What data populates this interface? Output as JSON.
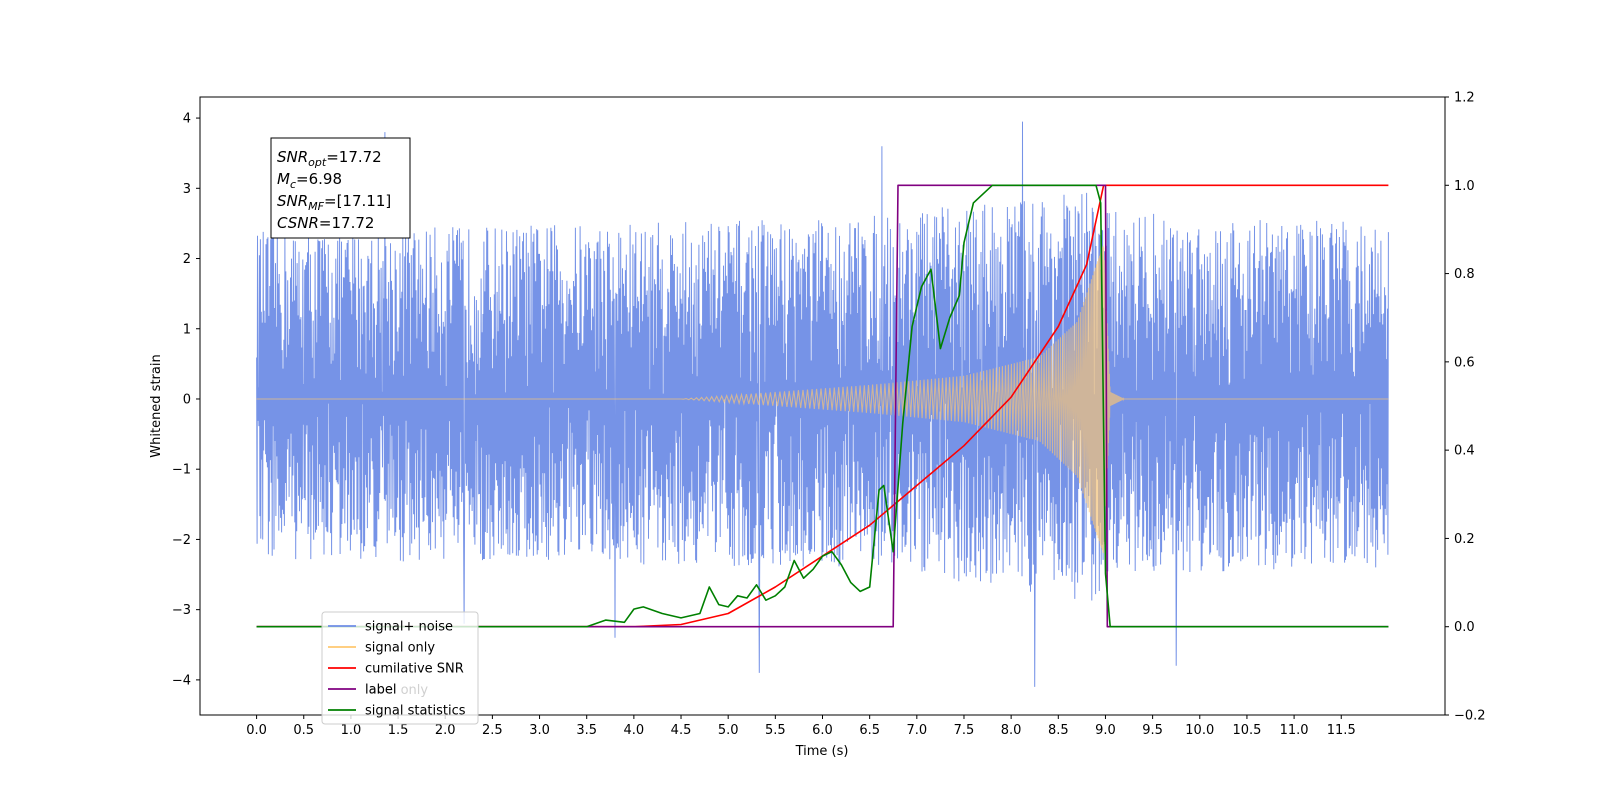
{
  "chart_data": {
    "type": "line",
    "title": "",
    "xlabel": "Time (s)",
    "ylabel_left": "Whitened strain",
    "ylabel_right": "",
    "xlim": [
      -0.6,
      12.6
    ],
    "ylim_left": [
      -4.5,
      4.3
    ],
    "ylim_right": [
      -0.2,
      1.2
    ],
    "grid": false,
    "legend_placement": "lower-left",
    "x_ticks": [
      0.0,
      0.5,
      1.0,
      1.5,
      2.0,
      2.5,
      3.0,
      3.5,
      4.0,
      4.5,
      5.0,
      5.5,
      6.0,
      6.5,
      7.0,
      7.5,
      8.0,
      8.5,
      9.0,
      9.5,
      10.0,
      10.5,
      11.0,
      11.5
    ],
    "x_tick_labels": [
      "0.0",
      "0.5",
      "1.0",
      "1.5",
      "2.0",
      "2.5",
      "3.0",
      "3.5",
      "4.0",
      "4.5",
      "5.0",
      "5.5",
      "6.0",
      "6.5",
      "7.0",
      "7.5",
      "8.0",
      "8.5",
      "9.0",
      "9.5",
      "10.0",
      "10.5",
      "11.0",
      "11.5"
    ],
    "y_left_ticks": [
      4,
      3,
      2,
      1,
      0,
      -1,
      -2,
      -3,
      -4
    ],
    "y_left_tick_labels": [
      "4",
      "3",
      "2",
      "1",
      "0",
      "−1",
      "−2",
      "−3",
      "−4"
    ],
    "y_right_ticks": [
      1.2,
      1.0,
      0.8,
      0.6,
      0.4,
      0.2,
      0.0,
      -0.2
    ],
    "y_right_tick_labels": [
      "1.2",
      "1.0",
      "0.8",
      "0.6",
      "0.4",
      "0.2",
      "0.0",
      "−0.2"
    ],
    "annotation": {
      "lines": [
        {
          "base": "SNR",
          "sub": "opt",
          "rest": "=17.72"
        },
        {
          "base": "M",
          "sub": "c",
          "rest": "=6.98"
        },
        {
          "base": "SNR",
          "sub": "MF",
          "rest": "=[17.11]"
        },
        {
          "base": "CSNR",
          "sub": "",
          "rest": "=17.72"
        }
      ]
    },
    "legend": [
      {
        "label": "signal+ noise",
        "color": "#6f8de6"
      },
      {
        "label": "signal only",
        "color": "#ffc870"
      },
      {
        "label": "cumilative SNR",
        "color": "#ff0000"
      },
      {
        "label": "label",
        "color": "#800080"
      },
      {
        "label": "signal statistics",
        "color": "#008000"
      }
    ],
    "ghost_legend_text": "label only",
    "series": [
      {
        "name": "signal+ noise",
        "axis": "left",
        "color": "#6f8de6",
        "x_range": [
          0.0,
          12.0
        ],
        "merger_time": 8.98,
        "noise_envelope": [
          {
            "x": 0.0,
            "upper": 2.4,
            "lower": -2.3
          },
          {
            "x": 6.5,
            "upper": 2.6,
            "lower": -2.4
          },
          {
            "x": 8.9,
            "upper": 3.0,
            "lower": -2.9
          },
          {
            "x": 9.0,
            "upper": 2.7,
            "lower": -2.5
          },
          {
            "x": 12.0,
            "upper": 2.5,
            "lower": -2.4
          }
        ],
        "peaks": [
          {
            "x": 1.36,
            "y": 3.8
          },
          {
            "x": 2.2,
            "y": -3.2
          },
          {
            "x": 3.8,
            "y": -3.4
          },
          {
            "x": 5.33,
            "y": -3.9
          },
          {
            "x": 6.63,
            "y": 3.6
          },
          {
            "x": 8.12,
            "y": 3.95
          },
          {
            "x": 8.25,
            "y": -4.1
          },
          {
            "x": 9.75,
            "y": -3.8
          }
        ]
      },
      {
        "name": "signal only",
        "axis": "left",
        "color": "#ffc870",
        "chirp_start": 4.5,
        "merger_time": 8.98,
        "amplitude_points": [
          {
            "x": 4.5,
            "amp": 0.0
          },
          {
            "x": 5.5,
            "amp": 0.1
          },
          {
            "x": 6.5,
            "amp": 0.2
          },
          {
            "x": 7.5,
            "amp": 0.33
          },
          {
            "x": 8.3,
            "amp": 0.6
          },
          {
            "x": 8.7,
            "amp": 1.1
          },
          {
            "x": 8.9,
            "amp": 1.9
          },
          {
            "x": 8.98,
            "amp": 2.2
          },
          {
            "x": 9.05,
            "amp": 0.1
          },
          {
            "x": 9.2,
            "amp": 0.0
          }
        ]
      },
      {
        "name": "cumilative SNR",
        "axis": "right",
        "color": "#ff0000",
        "x": [
          0.0,
          4.0,
          4.5,
          5.0,
          5.5,
          6.0,
          6.5,
          7.0,
          7.5,
          8.0,
          8.5,
          8.8,
          8.98,
          9.0,
          12.0
        ],
        "y": [
          0.0,
          0.0,
          0.005,
          0.03,
          0.09,
          0.16,
          0.23,
          0.32,
          0.41,
          0.52,
          0.68,
          0.82,
          1.0,
          1.0,
          1.0
        ]
      },
      {
        "name": "label",
        "axis": "right",
        "color": "#800080",
        "x": [
          0.0,
          6.75,
          6.8,
          9.0,
          9.02,
          12.0
        ],
        "y": [
          0.0,
          0.0,
          1.0,
          1.0,
          0.0,
          0.0
        ]
      },
      {
        "name": "signal statistics",
        "axis": "right",
        "color": "#008000",
        "x": [
          0.0,
          3.5,
          3.7,
          3.9,
          4.0,
          4.1,
          4.3,
          4.5,
          4.7,
          4.8,
          4.9,
          5.0,
          5.1,
          5.2,
          5.3,
          5.4,
          5.5,
          5.6,
          5.7,
          5.8,
          5.9,
          6.0,
          6.1,
          6.2,
          6.3,
          6.4,
          6.5,
          6.6,
          6.65,
          6.75,
          6.85,
          6.95,
          7.05,
          7.15,
          7.25,
          7.35,
          7.45,
          7.5,
          7.6,
          7.8,
          8.0,
          8.5,
          8.9,
          8.95,
          9.0,
          9.05,
          12.0
        ],
        "y": [
          0.0,
          0.0,
          0.015,
          0.01,
          0.04,
          0.045,
          0.03,
          0.02,
          0.03,
          0.09,
          0.05,
          0.045,
          0.07,
          0.065,
          0.095,
          0.06,
          0.07,
          0.09,
          0.15,
          0.11,
          0.13,
          0.16,
          0.17,
          0.14,
          0.1,
          0.08,
          0.09,
          0.31,
          0.32,
          0.17,
          0.46,
          0.68,
          0.77,
          0.81,
          0.63,
          0.7,
          0.75,
          0.87,
          0.96,
          1.0,
          1.0,
          1.0,
          1.0,
          0.96,
          0.12,
          0.0,
          0.0
        ]
      }
    ]
  }
}
